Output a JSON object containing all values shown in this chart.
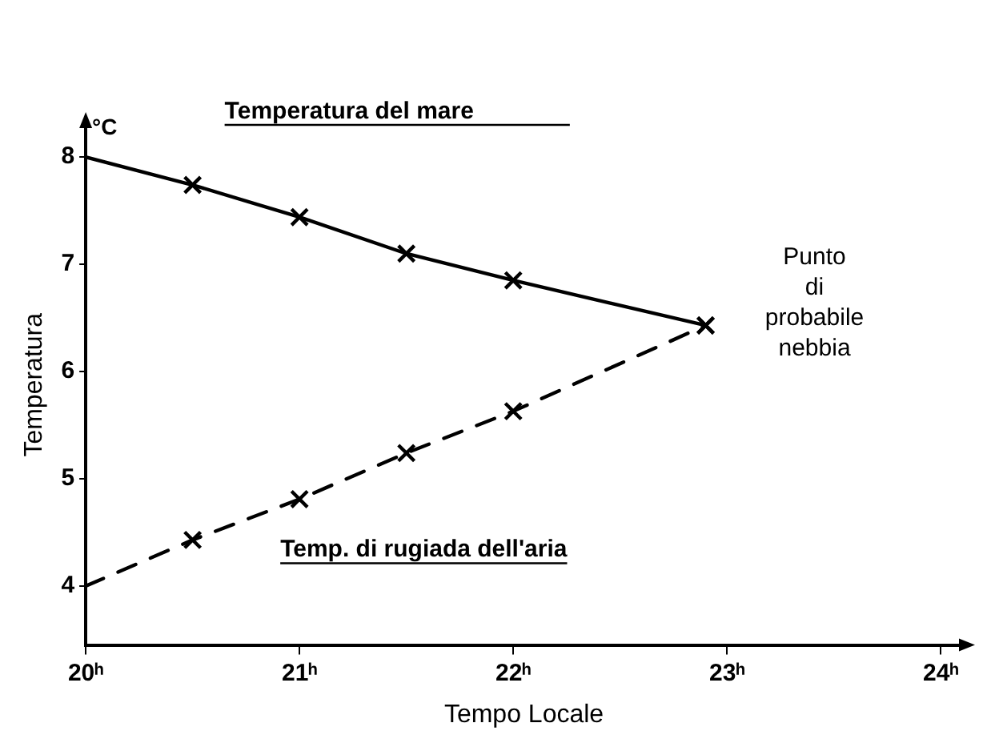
{
  "chart_data": {
    "type": "line",
    "ylabel": "Temperatura",
    "xlabel": "Tempo Locale",
    "annotations": [
      "°C",
      {
        "text": "Punto di probabile nebbia",
        "x": 22.9,
        "y": 6.43
      }
    ],
    "xlim": [
      20,
      24.1
    ],
    "ylim": [
      3.45,
      8.3
    ],
    "xticks": [
      {
        "value": 20,
        "label": "20ʰ"
      },
      {
        "value": 21,
        "label": "21ʰ"
      },
      {
        "value": 22,
        "label": "22ʰ"
      },
      {
        "value": 23,
        "label": "23ʰ"
      },
      {
        "value": 24,
        "label": "24ʰ"
      }
    ],
    "yticks": [
      4,
      5,
      6,
      7,
      8
    ],
    "grid": false,
    "legend": false,
    "marker": "cross",
    "series": [
      {
        "name": "Temperatura del mare",
        "color": "#000000",
        "line_style": "solid",
        "x": [
          20,
          20.5,
          21,
          21.5,
          22,
          22.9
        ],
        "values": [
          8.0,
          7.74,
          7.44,
          7.1,
          6.85,
          6.43
        ]
      },
      {
        "name": "Temp. di rugiada dell'aria",
        "color": "#000000",
        "line_style": "dashed",
        "x": [
          20,
          20.5,
          21,
          21.5,
          22,
          22.9
        ],
        "values": [
          4.0,
          4.43,
          4.81,
          5.24,
          5.63,
          6.43
        ]
      }
    ]
  }
}
